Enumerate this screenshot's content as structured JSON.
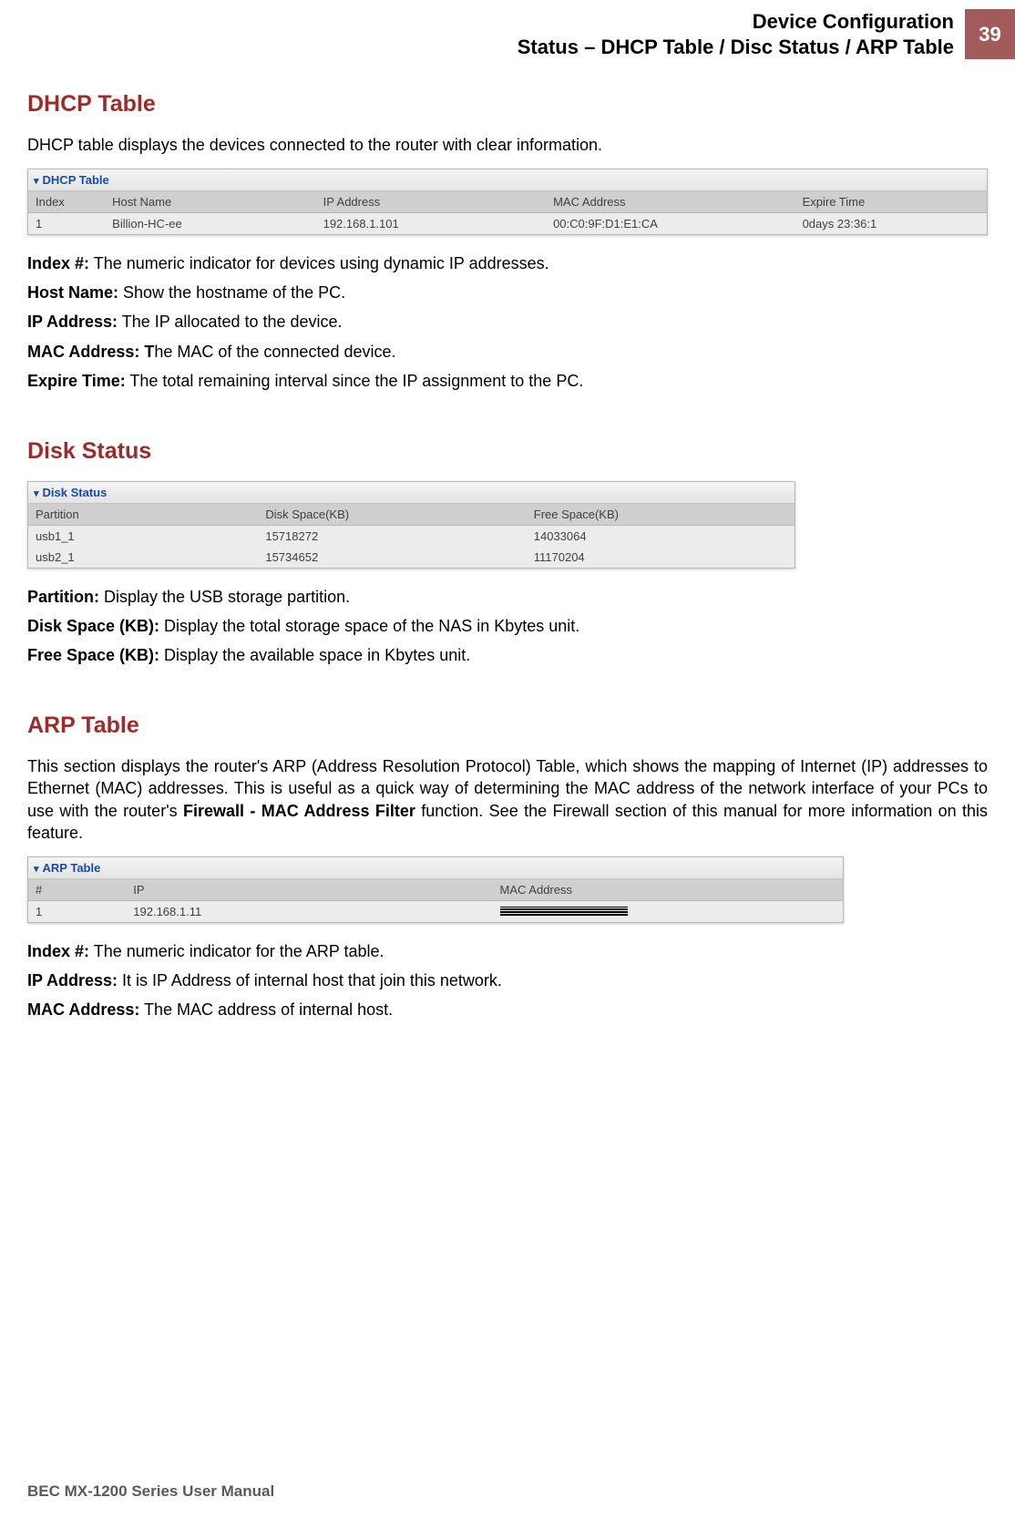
{
  "header": {
    "line1": "Device Configuration",
    "line2": "Status – DHCP Table / Disc Status / ARP Table",
    "page_number": "39"
  },
  "colors": {
    "heading": "#9c2b2b",
    "page_box_bg": "#a35a5a",
    "panel_title": "#1a4aa8",
    "footer_text": "#5a5a5a",
    "th_bg": "#cfcfcf",
    "td_bg": "#ececec"
  },
  "dhcp": {
    "heading": "DHCP Table",
    "intro": "DHCP table displays the devices connected to the router with clear information.",
    "panel_title": "DHCP Table",
    "columns": [
      "Index",
      "Host Name",
      "IP Address",
      "MAC Address",
      "Expire Time"
    ],
    "col_widths": [
      "8%",
      "22%",
      "24%",
      "26%",
      "20%"
    ],
    "rows": [
      [
        "1",
        "Billion-HC-ee",
        "192.168.1.101",
        "00:C0:9F:D1:E1:CA",
        "0days 23:36:1"
      ]
    ],
    "definitions": [
      {
        "term": "Index #:",
        "desc": " The numeric indicator for devices using dynamic IP addresses."
      },
      {
        "term": "Host Name:",
        "desc": " Show the hostname of the PC."
      },
      {
        "term": "IP Address:",
        "desc": " The IP allocated to the device."
      },
      {
        "term": "MAC Address: T",
        "desc": "he MAC of the connected device."
      },
      {
        "term": "Expire Time:",
        "desc": " The total remaining interval since the IP assignment to the PC."
      }
    ]
  },
  "disk": {
    "heading": "Disk Status",
    "panel_title": "Disk Status",
    "columns": [
      "Partition",
      "Disk Space(KB)",
      "Free Space(KB)"
    ],
    "col_widths": [
      "30%",
      "35%",
      "35%"
    ],
    "rows": [
      [
        "usb1_1",
        "15718272",
        "14033064"
      ],
      [
        "usb2_1",
        "15734652",
        "11170204"
      ]
    ],
    "definitions": [
      {
        "term": "Partition:",
        "desc": " Display the USB storage partition."
      },
      {
        "term": "Disk Space (KB):",
        "desc": " Display the total storage space of the NAS in Kbytes unit."
      },
      {
        "term": "Free Space (KB):",
        "desc": " Display the available space in Kbytes unit."
      }
    ]
  },
  "arp": {
    "heading": "ARP Table",
    "intro_html": "This section displays the router's ARP (Address Resolution Protocol) Table, which shows the mapping of Internet (IP) addresses to Ethernet (MAC) addresses. This is useful as a quick way of determining the MAC address of the network interface of your PCs to use with the router's <b>Firewall - MAC Address Filter</b> function. See the Firewall section of this manual for more information on this feature.",
    "panel_title": "ARP Table",
    "columns": [
      "#",
      "IP",
      "MAC Address"
    ],
    "col_widths": [
      "12%",
      "45%",
      "43%"
    ],
    "rows": [
      [
        "1",
        "192.168.1.11",
        "REDACTED"
      ]
    ],
    "definitions": [
      {
        "term": "Index #:",
        "desc": " The numeric indicator for the ARP table."
      },
      {
        "term": "IP Address:",
        "desc": " It is IP Address of internal host that join this network."
      },
      {
        "term": "MAC Address:",
        "desc": " The MAC address of internal host."
      }
    ]
  },
  "footer": "BEC MX-1200 Series User Manual"
}
